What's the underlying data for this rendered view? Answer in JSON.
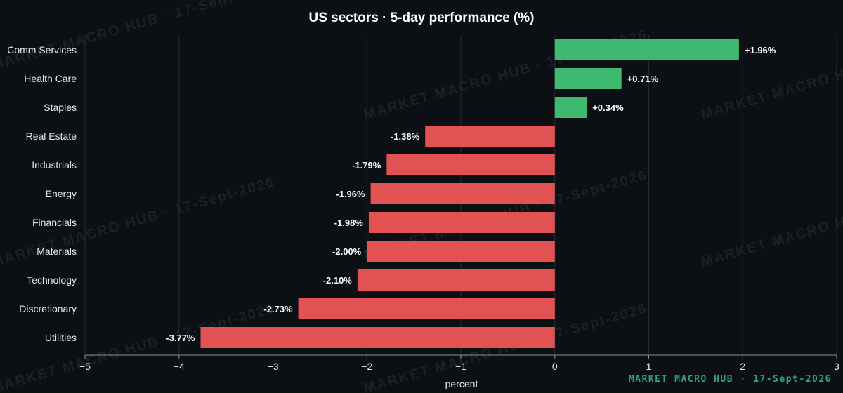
{
  "watermark": "MARKET MACRO HUB · 17-Sept-2026",
  "colors": {
    "background": "#0c0f14",
    "positive": "#3dba6f",
    "negative": "#e15252",
    "footer": "#2ea37c"
  },
  "chart_data": {
    "type": "bar",
    "orientation": "horizontal",
    "title": "US sectors · 5-day performance (%)",
    "xlabel": "percent",
    "ylabel": "",
    "xlim": [
      -5,
      3
    ],
    "xticks": [
      -5,
      -4,
      -3,
      -2,
      -1,
      0,
      1,
      2,
      3
    ],
    "grid": true,
    "categories": [
      "Comm Services",
      "Health Care",
      "Staples",
      "Real Estate",
      "Industrials",
      "Energy",
      "Financials",
      "Materials",
      "Technology",
      "Discretionary",
      "Utilities"
    ],
    "values": [
      1.96,
      0.71,
      0.34,
      -1.38,
      -1.79,
      -1.96,
      -1.98,
      -2.0,
      -2.1,
      -2.73,
      -3.77
    ],
    "labels": [
      "+1.96%",
      "+0.71%",
      "+0.34%",
      "-1.38%",
      "-1.79%",
      "-1.96%",
      "-1.98%",
      "-2.00%",
      "-2.10%",
      "-2.73%",
      "-3.77%"
    ]
  }
}
